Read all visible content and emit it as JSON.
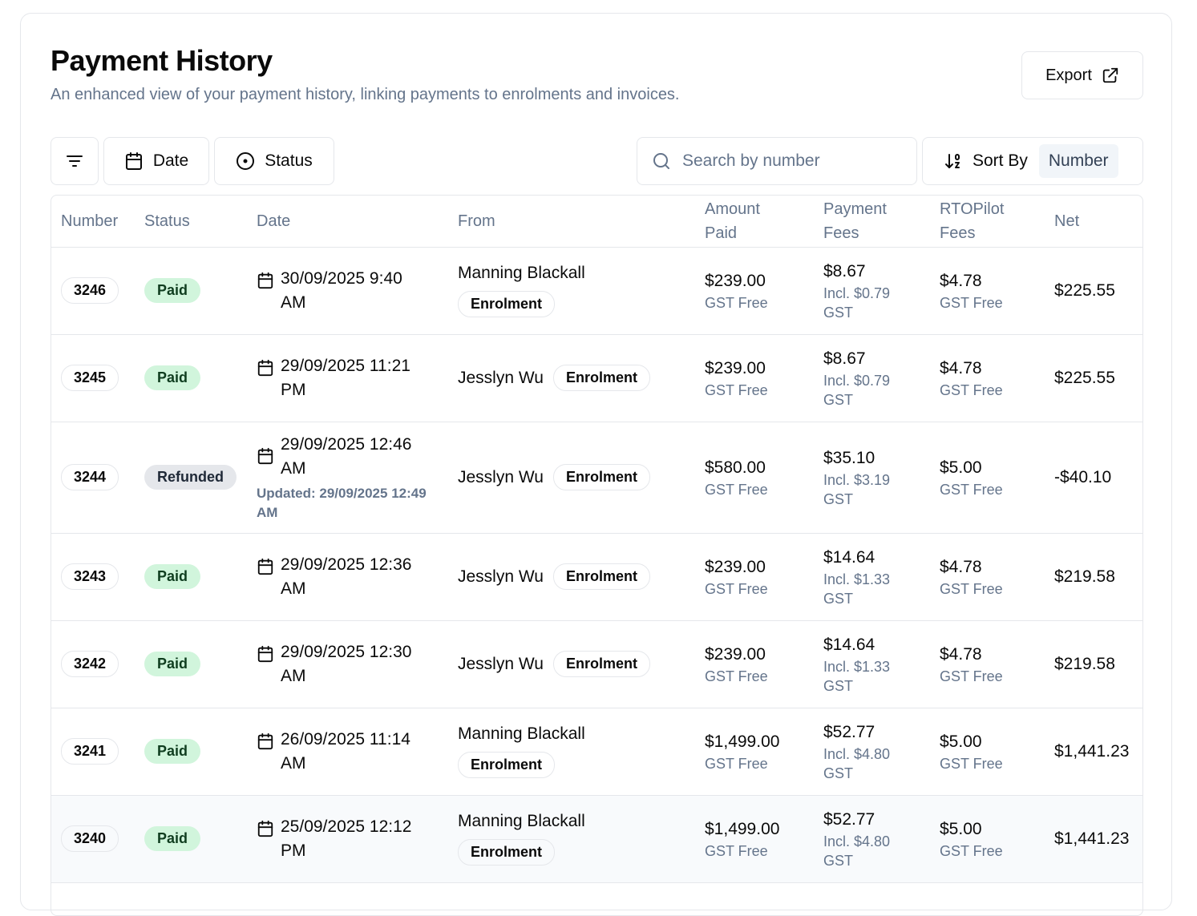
{
  "header": {
    "title": "Payment History",
    "subtitle": "An enhanced view of your payment history, linking payments to enrolments and invoices.",
    "export_label": "Export"
  },
  "toolbar": {
    "date_label": "Date",
    "status_label": "Status",
    "search_placeholder": "Search by number",
    "sort_label": "Sort By",
    "sort_value": "Number"
  },
  "table": {
    "columns": {
      "number": "Number",
      "status": "Status",
      "date": "Date",
      "from": "From",
      "amount_1": "Amount",
      "amount_2": "Paid",
      "fees_1": "Payment",
      "fees_2": "Fees",
      "rto_1": "RTOPilot",
      "rto_2": "Fees",
      "net": "Net"
    },
    "rows": [
      {
        "number": "3246",
        "status": "Paid",
        "date_1": "30/09/2025 9:40",
        "date_2": "AM",
        "from_name": "Manning Blackall",
        "from_tag": "Enrolment",
        "amount": "$239.00",
        "amount_sub": "GST Free",
        "fee": "$8.67",
        "fee_sub": "Incl. $0.79 GST",
        "rto": "$4.78",
        "rto_sub": "GST Free",
        "net": "$225.55"
      },
      {
        "number": "3245",
        "status": "Paid",
        "date_1": "29/09/2025 11:21",
        "date_2": "PM",
        "from_name": "Jesslyn Wu",
        "from_tag": "Enrolment",
        "amount": "$239.00",
        "amount_sub": "GST Free",
        "fee": "$8.67",
        "fee_sub": "Incl. $0.79 GST",
        "rto": "$4.78",
        "rto_sub": "GST Free",
        "net": "$225.55"
      },
      {
        "number": "3244",
        "status": "Refunded",
        "date_1": "29/09/2025 12:46",
        "date_2": "AM",
        "updated": "Updated: 29/09/2025 12:49 AM",
        "from_name": "Jesslyn Wu",
        "from_tag": "Enrolment",
        "amount": "$580.00",
        "amount_sub": "GST Free",
        "fee": "$35.10",
        "fee_sub": "Incl. $3.19 GST",
        "rto": "$5.00",
        "rto_sub": "GST Free",
        "net": "-$40.10"
      },
      {
        "number": "3243",
        "status": "Paid",
        "date_1": "29/09/2025 12:36",
        "date_2": "AM",
        "from_name": "Jesslyn Wu",
        "from_tag": "Enrolment",
        "amount": "$239.00",
        "amount_sub": "GST Free",
        "fee": "$14.64",
        "fee_sub": "Incl. $1.33 GST",
        "rto": "$4.78",
        "rto_sub": "GST Free",
        "net": "$219.58"
      },
      {
        "number": "3242",
        "status": "Paid",
        "date_1": "29/09/2025 12:30",
        "date_2": "AM",
        "from_name": "Jesslyn Wu",
        "from_tag": "Enrolment",
        "amount": "$239.00",
        "amount_sub": "GST Free",
        "fee": "$14.64",
        "fee_sub": "Incl. $1.33 GST",
        "rto": "$4.78",
        "rto_sub": "GST Free",
        "net": "$219.58"
      },
      {
        "number": "3241",
        "status": "Paid",
        "date_1": "26/09/2025 11:14",
        "date_2": "AM",
        "from_name": "Manning Blackall",
        "from_tag": "Enrolment",
        "amount": "$1,499.00",
        "amount_sub": "GST Free",
        "fee": "$52.77",
        "fee_sub": "Incl. $4.80 GST",
        "rto": "$5.00",
        "rto_sub": "GST Free",
        "net": "$1,441.23"
      },
      {
        "number": "3240",
        "status": "Paid",
        "date_1": "25/09/2025 12:12",
        "date_2": "PM",
        "from_name": "Manning Blackall",
        "from_tag": "Enrolment",
        "amount": "$1,499.00",
        "amount_sub": "GST Free",
        "fee": "$52.77",
        "fee_sub": "Incl. $4.80 GST",
        "rto": "$5.00",
        "rto_sub": "GST Free",
        "net": "$1,441.23"
      }
    ]
  },
  "colors": {
    "paid_bg": "#d1f5dc",
    "refunded_bg": "#e5e7eb",
    "muted_text": "#64748b",
    "border": "#e5e7eb"
  }
}
